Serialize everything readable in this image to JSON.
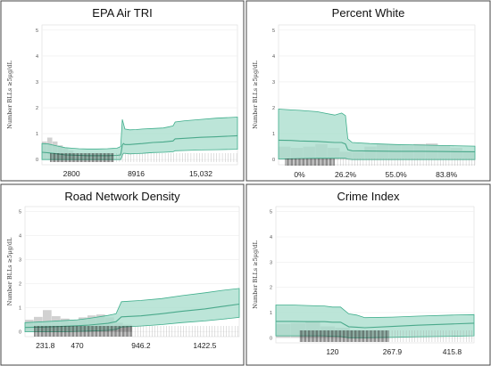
{
  "colors": {
    "band_fill": "#a6dccb",
    "band_edge": "#3fae8c",
    "mean_line": "#4aa98b",
    "hist_fill": "#c9c9c9",
    "rug": "#222222",
    "plot_bg": "#ffffff",
    "grid": "#eeeeee",
    "frame": "#444444",
    "title": "#111111"
  },
  "chart_data": [
    {
      "type": "area",
      "title": "EPA Air TRI",
      "ylabel": "Number BLLs ≥5μg/dL",
      "xlabel": "",
      "ylim": [
        -0.2,
        5.2
      ],
      "y_ticks": [
        0,
        1,
        2,
        3,
        4,
        5
      ],
      "x_tick_labels": [
        "2800",
        "8916",
        "15,032"
      ],
      "x_ticks": [
        2800,
        8916,
        15032
      ],
      "xlim": [
        0,
        18500
      ],
      "grid": true,
      "legend": "none",
      "series": [
        {
          "x": [
            0,
            600,
            1500,
            2200,
            2800,
            3500,
            4300,
            5200,
            6200,
            7100,
            7450,
            7600,
            7700,
            7850,
            8300,
            8916,
            9500,
            10500,
            11500,
            12400,
            12600,
            13500,
            15032,
            16500,
            18500
          ],
          "mean": [
            0.28,
            0.26,
            0.22,
            0.18,
            0.17,
            0.16,
            0.15,
            0.15,
            0.15,
            0.16,
            0.18,
            0.55,
            0.62,
            0.58,
            0.58,
            0.6,
            0.62,
            0.66,
            0.68,
            0.72,
            0.8,
            0.82,
            0.86,
            0.88,
            0.92
          ],
          "upper": [
            0.62,
            0.6,
            0.52,
            0.46,
            0.44,
            0.42,
            0.41,
            0.41,
            0.42,
            0.44,
            0.5,
            1.55,
            1.4,
            1.18,
            1.15,
            1.16,
            1.18,
            1.2,
            1.22,
            1.3,
            1.45,
            1.5,
            1.55,
            1.6,
            1.64
          ],
          "lower": [
            0.0,
            0.0,
            0.0,
            0.0,
            0.0,
            0.0,
            0.0,
            0.0,
            0.0,
            0.0,
            0.0,
            0.15,
            0.24,
            0.24,
            0.22,
            0.23,
            0.24,
            0.27,
            0.28,
            0.3,
            0.34,
            0.35,
            0.37,
            0.38,
            0.4
          ]
        }
      ],
      "histogram": [
        0.7,
        0.85,
        0.7,
        0.55,
        0.45,
        0.35
      ],
      "histogram_x": [
        0,
        3000
      ],
      "rug_dense": [
        800,
        6800
      ],
      "rug_sparse": [
        6800,
        18500
      ]
    },
    {
      "type": "area",
      "title": "Percent White",
      "ylabel": "Number BLLs ≥5μg/dL",
      "xlabel": "",
      "ylim": [
        -0.2,
        5.2
      ],
      "y_ticks": [
        0,
        1,
        2,
        3,
        4,
        5
      ],
      "x_tick_labels": [
        "0%",
        "26.2%",
        "55.0%",
        "83.8%"
      ],
      "x_ticks": [
        0,
        26.2,
        55.0,
        83.8
      ],
      "xlim": [
        -12,
        100
      ],
      "grid": true,
      "legend": "none",
      "series": [
        {
          "x": [
            -12,
            -5,
            0,
            10,
            20,
            24,
            26.2,
            27.5,
            30,
            40,
            55.0,
            70,
            83.8,
            100
          ],
          "mean": [
            0.75,
            0.74,
            0.72,
            0.7,
            0.66,
            0.66,
            0.6,
            0.38,
            0.34,
            0.33,
            0.32,
            0.32,
            0.31,
            0.3
          ],
          "upper": [
            1.95,
            1.92,
            1.9,
            1.85,
            1.72,
            1.8,
            1.7,
            0.8,
            0.66,
            0.62,
            0.58,
            0.56,
            0.54,
            0.52
          ],
          "lower": [
            0.02,
            0.03,
            0.04,
            0.05,
            0.05,
            0.05,
            0.05,
            0.02,
            0.0,
            0.0,
            0.0,
            0.0,
            0.0,
            0.0
          ]
        }
      ],
      "histogram": [
        0.5,
        0.45,
        0.5,
        0.6,
        0.45,
        0.3,
        0.3,
        0.5,
        0.6,
        0.58,
        0.55,
        0.6,
        0.62,
        0.55,
        0.45,
        0.35
      ],
      "histogram_x": [
        -12,
        100
      ],
      "rug_dense": [
        -8,
        20
      ],
      "rug_sparse": [
        20,
        100
      ]
    },
    {
      "type": "area",
      "title": "Road Network Density",
      "ylabel": "Number BLLs ≥5μg/dL",
      "xlabel": "",
      "ylim": [
        -0.2,
        5.2
      ],
      "y_ticks": [
        0,
        1,
        2,
        3,
        4,
        5
      ],
      "x_tick_labels": [
        "231.8",
        "470",
        "946.2",
        "1422.5"
      ],
      "x_ticks": [
        231.8,
        470,
        946.2,
        1422.5
      ],
      "xlim": [
        80,
        1680
      ],
      "grid": true,
      "legend": "none",
      "series": [
        {
          "x": [
            80,
            231.8,
            350,
            470,
            560,
            700,
            760,
            800,
            946.2,
            1100,
            1250,
            1422.5,
            1550,
            1680
          ],
          "mean": [
            0.18,
            0.2,
            0.22,
            0.25,
            0.28,
            0.35,
            0.42,
            0.62,
            0.66,
            0.75,
            0.85,
            0.95,
            1.05,
            1.15
          ],
          "upper": [
            0.38,
            0.42,
            0.46,
            0.5,
            0.56,
            0.68,
            0.75,
            1.25,
            1.3,
            1.38,
            1.5,
            1.62,
            1.72,
            1.8
          ],
          "lower": [
            0.0,
            0.0,
            0.0,
            0.02,
            0.03,
            0.06,
            0.1,
            0.2,
            0.24,
            0.3,
            0.38,
            0.45,
            0.52,
            0.6
          ]
        }
      ],
      "histogram": [
        0.5,
        0.62,
        0.9,
        0.65,
        0.55,
        0.5,
        0.6,
        0.68,
        0.72,
        0.6,
        0.38,
        0.3
      ],
      "histogram_x": [
        80,
        880
      ],
      "rug_dense": [
        150,
        880
      ],
      "rug_sparse": [
        880,
        1680
      ]
    },
    {
      "type": "area",
      "title": "Crime Index",
      "ylabel": "Number BLLs ≥5μg/dL",
      "xlabel": "",
      "ylim": [
        -0.2,
        5.2
      ],
      "y_ticks": [
        0,
        1,
        2,
        3,
        4,
        5
      ],
      "x_tick_labels": [
        "120",
        "267.9",
        "415.8"
      ],
      "x_ticks": [
        120,
        267.9,
        415.8
      ],
      "xlim": [
        -20,
        470
      ],
      "grid": true,
      "legend": "none",
      "series": [
        {
          "x": [
            -20,
            20,
            60,
            100,
            120,
            140,
            160,
            180,
            200,
            267.9,
            330,
            415.8,
            470
          ],
          "mean": [
            0.65,
            0.65,
            0.64,
            0.64,
            0.62,
            0.62,
            0.44,
            0.42,
            0.4,
            0.45,
            0.5,
            0.55,
            0.58
          ],
          "upper": [
            1.3,
            1.3,
            1.28,
            1.26,
            1.22,
            1.22,
            0.95,
            0.9,
            0.8,
            0.82,
            0.86,
            0.9,
            0.92
          ],
          "lower": [
            0.08,
            0.08,
            0.08,
            0.08,
            0.06,
            0.05,
            0.0,
            0.0,
            0.0,
            0.02,
            0.04,
            0.06,
            0.08
          ]
        }
      ],
      "histogram": [
        0.55,
        0.58,
        0.65,
        0.45,
        0.4,
        0.3
      ],
      "histogram_x": [
        -20,
        200
      ],
      "rug_dense": [
        40,
        260
      ],
      "rug_sparse": [
        260,
        470
      ]
    }
  ]
}
